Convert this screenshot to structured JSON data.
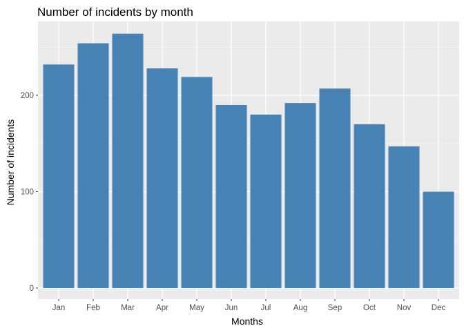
{
  "chart_data": {
    "type": "bar",
    "title": "Number of incidents by month",
    "xlabel": "Months",
    "ylabel": "Number of incidents",
    "categories": [
      "Jan",
      "Feb",
      "Mar",
      "Apr",
      "May",
      "Jun",
      "Jul",
      "Aug",
      "Sep",
      "Oct",
      "Nov",
      "Dec"
    ],
    "values": [
      232,
      254,
      264,
      228,
      219,
      190,
      180,
      192,
      207,
      170,
      147,
      100
    ],
    "ylim": [
      0,
      275
    ],
    "yticks": [
      0,
      100,
      200
    ],
    "grid": true,
    "legend": "none",
    "colors": {
      "bar": "#4682B4",
      "panel": "#EBEBEB",
      "grid_major": "#FFFFFF",
      "grid_minor": "#F5F5F5",
      "tick": "#333333"
    }
  }
}
